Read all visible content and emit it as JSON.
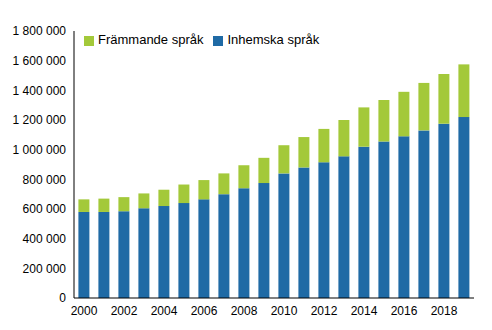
{
  "chart_data": {
    "type": "bar",
    "stacked": true,
    "legend": "upper left",
    "grid": false,
    "categories": [
      "2000",
      null,
      "2002",
      null,
      "2004",
      null,
      "2006",
      null,
      "2008",
      null,
      "2010",
      null,
      "2012",
      null,
      "2014",
      null,
      "2016",
      null,
      "2018",
      null
    ],
    "series": [
      {
        "name": "Inhemska språk",
        "color": "#1f6aa5",
        "values": [
          580000,
          580000,
          585000,
          605000,
          620000,
          640000,
          665000,
          700000,
          740000,
          775000,
          840000,
          880000,
          915000,
          955000,
          1020000,
          1055000,
          1090000,
          1130000,
          1175000,
          1220000
        ]
      },
      {
        "name": "Främmande språk",
        "color": "#a3c93a",
        "values": [
          85000,
          90000,
          95000,
          100000,
          110000,
          125000,
          130000,
          140000,
          155000,
          170000,
          190000,
          205000,
          225000,
          245000,
          265000,
          280000,
          300000,
          320000,
          335000,
          355000
        ]
      }
    ],
    "ylim": [
      0,
      1800000
    ],
    "yticks": [
      0,
      {
        "value": 200000,
        "label": "200 000"
      },
      {
        "value": 400000,
        "label": "400 000"
      },
      {
        "value": 600000,
        "label": "600 000"
      },
      {
        "value": 800000,
        "label": "800 000"
      },
      {
        "value": 1000000,
        "label": "1 000 000"
      },
      {
        "value": 1200000,
        "label": "1 200 000"
      },
      {
        "value": 1400000,
        "label": "1 400 000"
      },
      {
        "value": 1600000,
        "label": "1 600 000"
      },
      {
        "value": 1800000,
        "label": "1 800 000"
      }
    ]
  }
}
